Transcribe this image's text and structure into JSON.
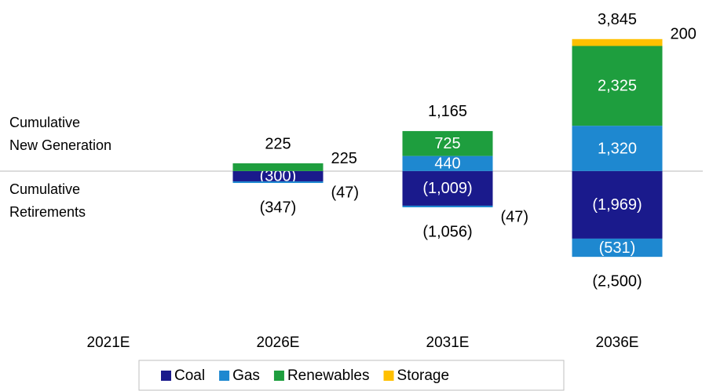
{
  "chart_data": {
    "type": "stacked_bar",
    "categories": [
      "2021E",
      "2026E",
      "2031E",
      "2036E"
    ],
    "row_labels": [
      [
        "Cumulative",
        "New Generation"
      ],
      [
        "Cumulative",
        "Retirements"
      ]
    ],
    "series": [
      {
        "name": "Coal",
        "color": "#1a1a8c",
        "values": [
          null,
          -300,
          -1009,
          -1969
        ],
        "value_labels": [
          null,
          "(300)",
          "(1,009)",
          "(1,969)"
        ]
      },
      {
        "name": "Gas",
        "color": "#1e88d0",
        "values": [
          null,
          null,
          440,
          1320
        ],
        "value_labels": [
          null,
          null,
          "440",
          "1,320"
        ],
        "retirements": [
          null,
          -47,
          -47,
          -531
        ],
        "retirement_labels": [
          null,
          "(47)",
          "(47)",
          "(531)"
        ]
      },
      {
        "name": "Renewables",
        "color": "#1e9e3e",
        "values": [
          null,
          225,
          725,
          2325
        ],
        "value_labels": [
          null,
          "225",
          "725",
          "2,325"
        ]
      },
      {
        "name": "Storage",
        "color": "#ffc000",
        "values": [
          null,
          null,
          null,
          200
        ],
        "value_labels": [
          null,
          null,
          null,
          "200"
        ]
      }
    ],
    "totals_new": {
      "values": [
        null,
        225,
        1165,
        3845
      ],
      "labels": [
        null,
        "225",
        "1,165",
        "3,845"
      ]
    },
    "totals_retired": {
      "values": [
        null,
        -347,
        -1056,
        -2500
      ],
      "labels": [
        null,
        "(347)",
        "(1,056)",
        "(2,500)"
      ]
    },
    "ylim": [
      -3000,
      4000
    ],
    "legend": "bottom"
  }
}
